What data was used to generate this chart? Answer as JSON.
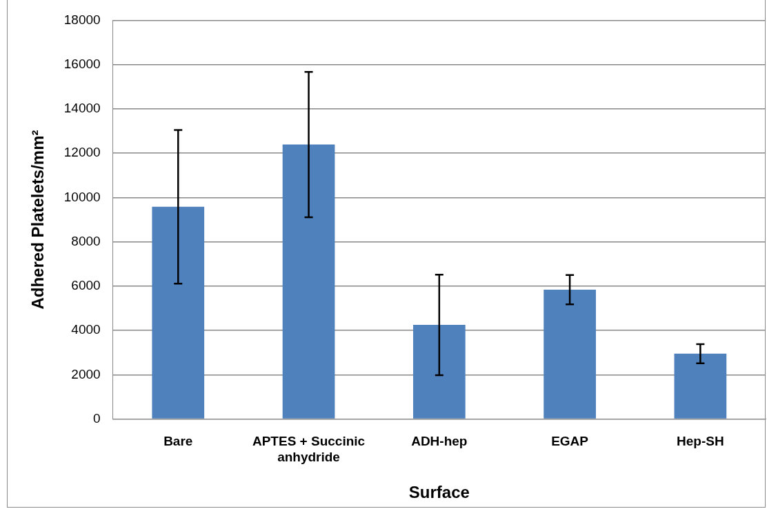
{
  "chart_data": {
    "type": "bar",
    "xlabel": "Surface",
    "ylabel": "Adhered Platelets/mm²",
    "categories": [
      "Bare",
      "APTES + Succinic anhydride",
      "ADH-hep",
      "EGAP",
      "Hep-SH"
    ],
    "values": [
      9580,
      12390,
      4250,
      5840,
      2950
    ],
    "errors": [
      3470,
      3280,
      2270,
      660,
      430
    ],
    "color": "#4f81bd",
    "ylim": [
      0,
      18000
    ],
    "yticks": [
      0,
      2000,
      4000,
      6000,
      8000,
      10000,
      12000,
      14000,
      16000,
      18000
    ],
    "grid": "y",
    "legend": false
  }
}
